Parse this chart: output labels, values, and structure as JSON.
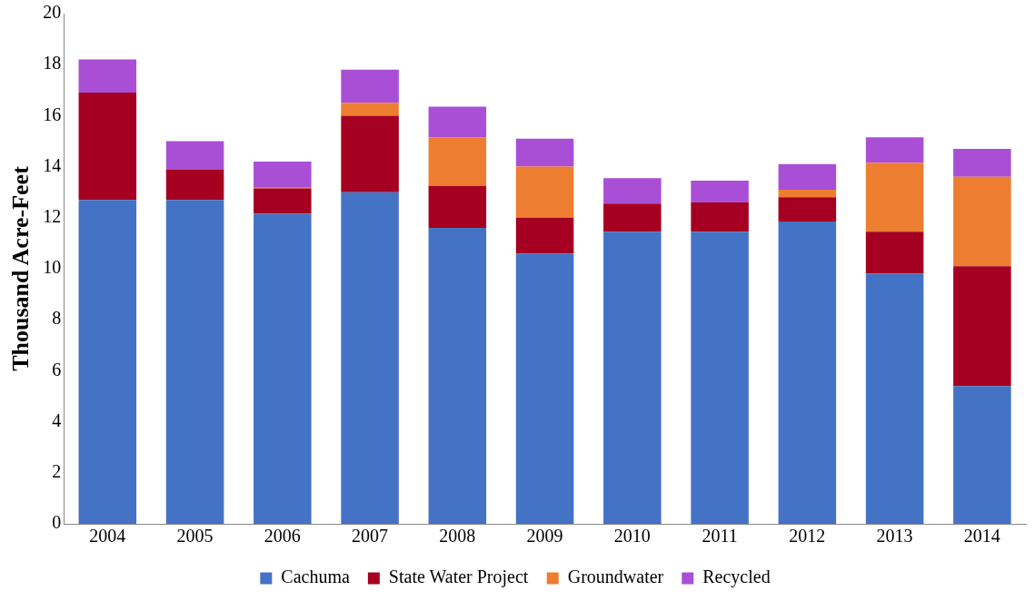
{
  "chart_data": {
    "type": "bar",
    "stacked": true,
    "ylabel": "Thousand Acre-Feet",
    "categories": [
      "2004",
      "2005",
      "2006",
      "2007",
      "2008",
      "2009",
      "2010",
      "2011",
      "2012",
      "2013",
      "2014"
    ],
    "series": [
      {
        "name": "Cachuma",
        "color": "#4472c4",
        "values": [
          12.7,
          12.7,
          12.15,
          13.0,
          11.6,
          10.6,
          11.45,
          11.45,
          11.85,
          9.8,
          5.4
        ]
      },
      {
        "name": "State Water Project",
        "color": "#a50021",
        "values": [
          4.2,
          1.2,
          1.0,
          3.0,
          1.65,
          1.4,
          1.1,
          1.15,
          0.95,
          1.65,
          4.7
        ]
      },
      {
        "name": "Groundwater",
        "color": "#ed7d31",
        "values": [
          0,
          0,
          0.05,
          0.5,
          1.9,
          2.0,
          0,
          0,
          0.3,
          2.7,
          3.5
        ]
      },
      {
        "name": "Recycled",
        "color": "#a94fd6",
        "values": [
          1.3,
          1.1,
          1.0,
          1.3,
          1.2,
          1.1,
          1.0,
          0.85,
          1.0,
          1.0,
          1.1
        ]
      }
    ],
    "ylim": [
      0,
      20
    ],
    "yticks": [
      0,
      2,
      4,
      6,
      8,
      10,
      12,
      14,
      16,
      18,
      20
    ],
    "grid": false,
    "legend": "bottom"
  }
}
